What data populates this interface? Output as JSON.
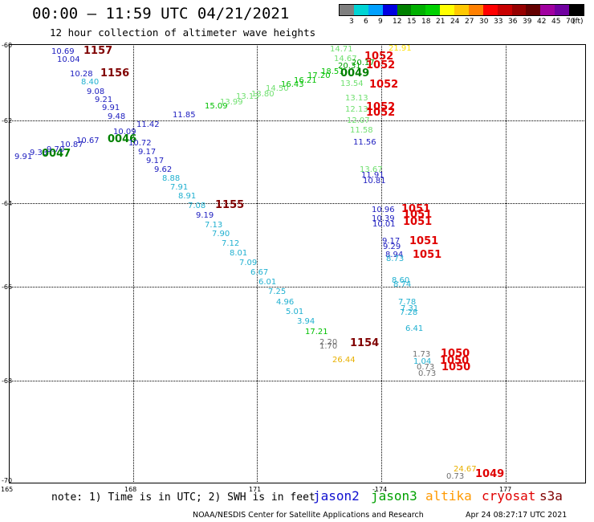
{
  "title": "00:00 — 11:59 UTC 04/21/2021",
  "subtitle": "12 hour collection of altimeter wave heights",
  "legend": {
    "colors": [
      "#7f7f7f",
      "#00d4d4",
      "#00a0ff",
      "#0000e0",
      "#008000",
      "#00b000",
      "#00d000",
      "#ffff00",
      "#ffc800",
      "#ff8000",
      "#ff0000",
      "#c80000",
      "#960000",
      "#640000",
      "#a000a0",
      "#7000a0",
      "#000000"
    ],
    "labels": [
      "3",
      "6",
      "9",
      "12",
      "15",
      "18",
      "21",
      "24",
      "27",
      "30",
      "33",
      "36",
      "39",
      "42",
      "45",
      "70"
    ],
    "unit": "(ft)"
  },
  "axes": {
    "x_ticks": [
      "165",
      "168",
      "171",
      "-174",
      "177"
    ],
    "y_ticks": [
      "-60",
      "-62",
      "-64",
      "-66",
      "-68",
      "-70"
    ]
  },
  "note": "note: 1) Time is in UTC; 2) SWH is in feet",
  "satellites": [
    {
      "name": "jason2",
      "color": "#1010d0"
    },
    {
      "name": "jason3",
      "color": "#00a000"
    },
    {
      "name": "altika",
      "color": "#ff9900"
    },
    {
      "name": "cryosat",
      "color": "#e00000"
    },
    {
      "name": "s3a",
      "color": "#800000"
    }
  ],
  "credit": "NOAA/NESDIS Center for Satellite Applications and Research",
  "timestamp": "Apr 24 08:27:17 UTC 2021",
  "points": [
    {
      "t": "10.69",
      "c": "#2020c0"
    },
    {
      "t": "10.04",
      "c": "#2020c0"
    },
    {
      "t": "1157",
      "c": "#800000",
      "big": true
    },
    {
      "t": "10.28",
      "c": "#2020c0"
    },
    {
      "t": "1156",
      "c": "#800000",
      "big": true
    },
    {
      "t": "8.40",
      "c": "#20b0d0"
    },
    {
      "t": "9.08",
      "c": "#2020c0"
    },
    {
      "t": "9.21",
      "c": "#2020c0"
    },
    {
      "t": "9.91",
      "c": "#2020c0"
    },
    {
      "t": "9.48",
      "c": "#2020c0"
    },
    {
      "t": "10.09",
      "c": "#2020c0"
    },
    {
      "t": "0046",
      "c": "#008000",
      "big": true
    },
    {
      "t": "10.72",
      "c": "#2020c0"
    },
    {
      "t": "9.91",
      "c": "#2020c0"
    },
    {
      "t": "9.33",
      "c": "#2020c0"
    },
    {
      "t": "0047",
      "c": "#008000",
      "big": true
    },
    {
      "t": "9.70",
      "c": "#2020c0"
    },
    {
      "t": "10.87",
      "c": "#2020c0"
    },
    {
      "t": "10.67",
      "c": "#2020c0"
    },
    {
      "t": "11.42",
      "c": "#2020c0"
    },
    {
      "t": "11.85",
      "c": "#2020c0"
    },
    {
      "t": "9.17",
      "c": "#2020c0"
    },
    {
      "t": "9.17",
      "c": "#2020c0"
    },
    {
      "t": "9.62",
      "c": "#2020c0"
    },
    {
      "t": "8.88",
      "c": "#20b0d0"
    },
    {
      "t": "7.91",
      "c": "#20b0d0"
    },
    {
      "t": "8.91",
      "c": "#20b0d0"
    },
    {
      "t": "7.08",
      "c": "#20b0d0"
    },
    {
      "t": "1155",
      "c": "#800000",
      "big": true
    },
    {
      "t": "9.19",
      "c": "#2020c0"
    },
    {
      "t": "7.13",
      "c": "#20b0d0"
    },
    {
      "t": "7.90",
      "c": "#20b0d0"
    },
    {
      "t": "7.12",
      "c": "#20b0d0"
    },
    {
      "t": "8.01",
      "c": "#20b0d0"
    },
    {
      "t": "7.09",
      "c": "#20b0d0"
    },
    {
      "t": "6.67",
      "c": "#20b0d0"
    },
    {
      "t": "6.01",
      "c": "#20b0d0"
    },
    {
      "t": "7.25",
      "c": "#20b0d0"
    },
    {
      "t": "4.96",
      "c": "#20b0d0"
    },
    {
      "t": "5.01",
      "c": "#20b0d0"
    },
    {
      "t": "3.94",
      "c": "#20b0d0"
    },
    {
      "t": "17.21",
      "c": "#00c000"
    },
    {
      "t": "2.20",
      "c": "#707070"
    },
    {
      "t": "1.70",
      "c": "#707070"
    },
    {
      "t": "1154",
      "c": "#800000",
      "big": true
    },
    {
      "t": "26.44",
      "c": "#e8b000"
    },
    {
      "t": "15.09",
      "c": "#00c000"
    },
    {
      "t": "13.99",
      "c": "#70e070"
    },
    {
      "t": "13.13",
      "c": "#70e070"
    },
    {
      "t": "13.80",
      "c": "#70e070"
    },
    {
      "t": "14.50",
      "c": "#70e070"
    },
    {
      "t": "16.43",
      "c": "#00c000"
    },
    {
      "t": "16.21",
      "c": "#00c000"
    },
    {
      "t": "17.20",
      "c": "#00c000"
    },
    {
      "t": "18.51",
      "c": "#00c000"
    },
    {
      "t": "0049",
      "c": "#008000",
      "big": true
    },
    {
      "t": "14.71",
      "c": "#70e070"
    },
    {
      "t": "14.67",
      "c": "#70e070"
    },
    {
      "t": "20.31",
      "c": "#00a000"
    },
    {
      "t": "20.17",
      "c": "#00a000"
    },
    {
      "t": "21.91",
      "c": "#ffe000"
    },
    {
      "t": "1052",
      "c": "#e00000",
      "big": true
    },
    {
      "t": "1052",
      "c": "#e00000",
      "big": true
    },
    {
      "t": "13.54",
      "c": "#70e070"
    },
    {
      "t": "1052",
      "c": "#e00000",
      "big": true
    },
    {
      "t": "13.13",
      "c": "#70e070"
    },
    {
      "t": "12.13",
      "c": "#70e070"
    },
    {
      "t": "1052",
      "c": "#e00000",
      "big": true
    },
    {
      "t": "1052",
      "c": "#e00000",
      "big": true
    },
    {
      "t": "12.07",
      "c": "#70e070"
    },
    {
      "t": "11.58",
      "c": "#70e070"
    },
    {
      "t": "11.56",
      "c": "#2020c0"
    },
    {
      "t": "13.67",
      "c": "#70e070"
    },
    {
      "t": "11.91",
      "c": "#2020c0"
    },
    {
      "t": "10.81",
      "c": "#2020c0"
    },
    {
      "t": "10.96",
      "c": "#2020c0"
    },
    {
      "t": "10.39",
      "c": "#2020c0"
    },
    {
      "t": "10.01",
      "c": "#2020c0"
    },
    {
      "t": "1051",
      "c": "#e00000",
      "big": true
    },
    {
      "t": "1051",
      "c": "#e00000",
      "big": true
    },
    {
      "t": "1051",
      "c": "#e00000",
      "big": true
    },
    {
      "t": "9.17",
      "c": "#2020c0"
    },
    {
      "t": "9.29",
      "c": "#2020c0"
    },
    {
      "t": "1051",
      "c": "#e00000",
      "big": true
    },
    {
      "t": "8.94",
      "c": "#2020c0"
    },
    {
      "t": "8.73",
      "c": "#20b0d0"
    },
    {
      "t": "1051",
      "c": "#e00000",
      "big": true
    },
    {
      "t": "8.60",
      "c": "#20b0d0"
    },
    {
      "t": "8.74",
      "c": "#20b0d0"
    },
    {
      "t": "7.78",
      "c": "#20b0d0"
    },
    {
      "t": "7.31",
      "c": "#20b0d0"
    },
    {
      "t": "7.28",
      "c": "#20b0d0"
    },
    {
      "t": "6.41",
      "c": "#20b0d0"
    },
    {
      "t": "1.73",
      "c": "#707070"
    },
    {
      "t": "1.04",
      "c": "#20b0d0"
    },
    {
      "t": "0.73",
      "c": "#707070"
    },
    {
      "t": "0.73",
      "c": "#707070"
    },
    {
      "t": "1050",
      "c": "#e00000",
      "big": true
    },
    {
      "t": "1050",
      "c": "#e00000",
      "big": true
    },
    {
      "t": "1050",
      "c": "#e00000",
      "big": true
    },
    {
      "t": "24.67",
      "c": "#e8b000"
    },
    {
      "t": "0.73",
      "c": "#707070"
    },
    {
      "t": "1049",
      "c": "#e00000",
      "big": true
    }
  ]
}
